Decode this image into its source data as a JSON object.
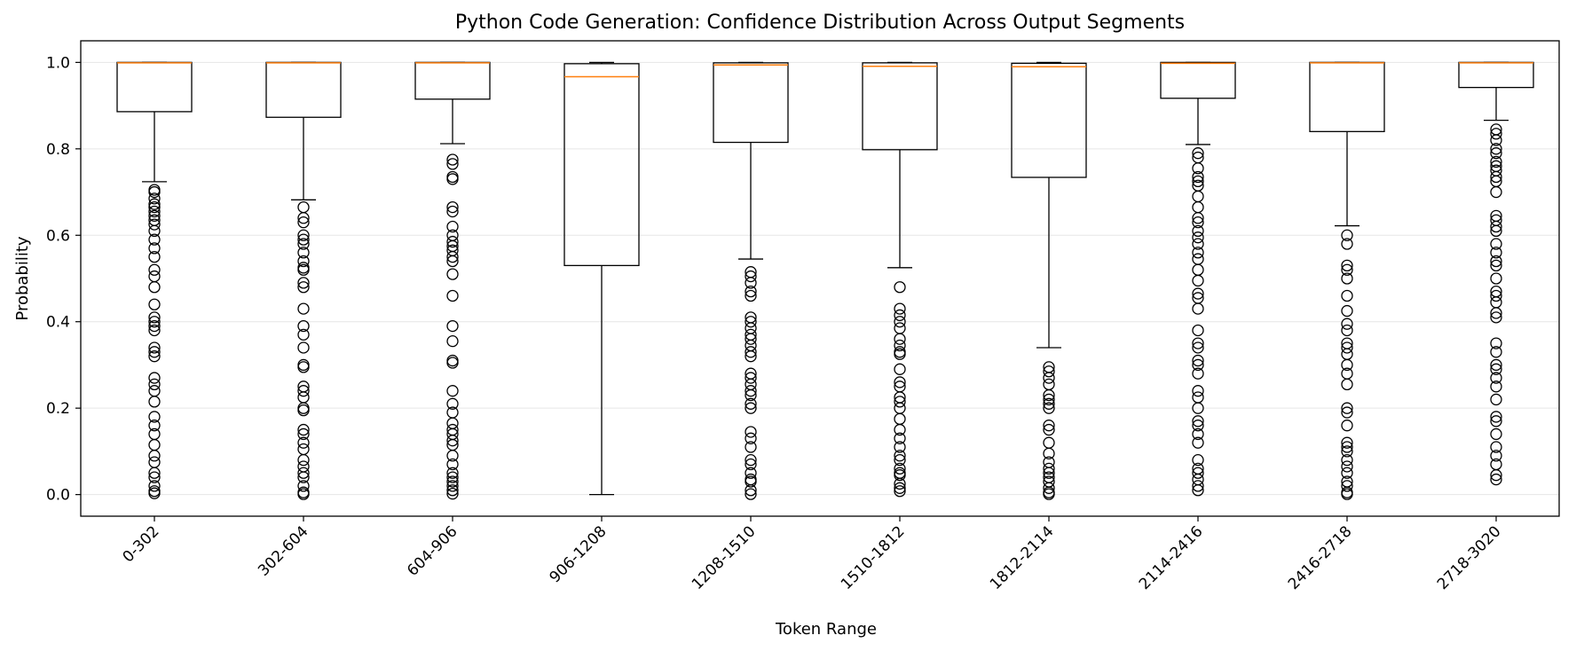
{
  "chart_data": {
    "type": "boxplot",
    "title": "Python Code Generation: Confidence Distribution Across Output Segments",
    "xlabel": "Token Range",
    "ylabel": "Probability",
    "ylim": [
      -0.05,
      1.05
    ],
    "yticks": [
      0.0,
      0.2,
      0.4,
      0.6,
      0.8,
      1.0
    ],
    "grid": "horizontal",
    "colors": {
      "box": "#000000",
      "median": "#ff7f0e",
      "grid": "#e6e6e6"
    },
    "categories": [
      "0-302",
      "302-604",
      "604-906",
      "906-1208",
      "1208-1510",
      "1510-1812",
      "1812-2114",
      "2114-2416",
      "2416-2718",
      "2718-3020"
    ],
    "boxes": [
      {
        "q1": 0.886,
        "median": 0.999,
        "q3": 1.0,
        "whisker_low": 0.724,
        "whisker_high": 1.0,
        "outliers": [
          0.705,
          0.7,
          0.685,
          0.672,
          0.665,
          0.655,
          0.645,
          0.635,
          0.625,
          0.61,
          0.59,
          0.57,
          0.55,
          0.52,
          0.505,
          0.48,
          0.44,
          0.41,
          0.4,
          0.39,
          0.38,
          0.34,
          0.33,
          0.32,
          0.27,
          0.255,
          0.24,
          0.215,
          0.18,
          0.16,
          0.14,
          0.115,
          0.09,
          0.075,
          0.05,
          0.04,
          0.02,
          0.008,
          0.003
        ]
      },
      {
        "q1": 0.873,
        "median": 0.999,
        "q3": 1.0,
        "whisker_low": 0.682,
        "whisker_high": 1.0,
        "outliers": [
          0.665,
          0.64,
          0.63,
          0.6,
          0.59,
          0.58,
          0.56,
          0.54,
          0.525,
          0.52,
          0.49,
          0.48,
          0.43,
          0.39,
          0.37,
          0.34,
          0.3,
          0.295,
          0.25,
          0.24,
          0.225,
          0.2,
          0.195,
          0.15,
          0.14,
          0.12,
          0.105,
          0.08,
          0.065,
          0.05,
          0.04,
          0.02,
          0.005,
          0.001
        ]
      },
      {
        "q1": 0.915,
        "median": 0.999,
        "q3": 1.0,
        "whisker_low": 0.812,
        "whisker_high": 1.0,
        "outliers": [
          0.775,
          0.765,
          0.735,
          0.73,
          0.665,
          0.655,
          0.62,
          0.6,
          0.585,
          0.575,
          0.565,
          0.55,
          0.54,
          0.51,
          0.46,
          0.39,
          0.355,
          0.31,
          0.305,
          0.24,
          0.21,
          0.19,
          0.165,
          0.15,
          0.14,
          0.125,
          0.115,
          0.09,
          0.07,
          0.05,
          0.04,
          0.03,
          0.02,
          0.01,
          0.002
        ]
      },
      {
        "q1": 0.53,
        "median": 0.967,
        "q3": 0.997,
        "whisker_low": 0.0,
        "whisker_high": 1.0,
        "outliers": []
      },
      {
        "q1": 0.815,
        "median": 0.994,
        "q3": 0.999,
        "whisker_low": 0.545,
        "whisker_high": 1.0,
        "outliers": [
          0.515,
          0.505,
          0.49,
          0.47,
          0.46,
          0.41,
          0.4,
          0.385,
          0.37,
          0.36,
          0.345,
          0.33,
          0.32,
          0.28,
          0.27,
          0.255,
          0.24,
          0.23,
          0.21,
          0.2,
          0.145,
          0.13,
          0.11,
          0.08,
          0.07,
          0.05,
          0.035,
          0.03,
          0.01,
          0.001
        ]
      },
      {
        "q1": 0.798,
        "median": 0.991,
        "q3": 0.999,
        "whisker_low": 0.525,
        "whisker_high": 1.0,
        "outliers": [
          0.48,
          0.43,
          0.415,
          0.4,
          0.385,
          0.36,
          0.345,
          0.33,
          0.325,
          0.29,
          0.26,
          0.25,
          0.225,
          0.215,
          0.2,
          0.175,
          0.15,
          0.13,
          0.11,
          0.09,
          0.08,
          0.06,
          0.05,
          0.045,
          0.025,
          0.015,
          0.008
        ]
      },
      {
        "q1": 0.734,
        "median": 0.99,
        "q3": 0.998,
        "whisker_low": 0.34,
        "whisker_high": 1.0,
        "outliers": [
          0.295,
          0.285,
          0.27,
          0.255,
          0.23,
          0.22,
          0.21,
          0.2,
          0.16,
          0.15,
          0.12,
          0.095,
          0.075,
          0.06,
          0.05,
          0.04,
          0.03,
          0.015,
          0.005,
          0.001
        ]
      },
      {
        "q1": 0.917,
        "median": 0.998,
        "q3": 1.0,
        "whisker_low": 0.81,
        "whisker_high": 1.0,
        "outliers": [
          0.79,
          0.78,
          0.755,
          0.735,
          0.725,
          0.715,
          0.69,
          0.665,
          0.64,
          0.63,
          0.61,
          0.595,
          0.58,
          0.56,
          0.545,
          0.52,
          0.495,
          0.465,
          0.455,
          0.43,
          0.38,
          0.35,
          0.34,
          0.31,
          0.3,
          0.28,
          0.24,
          0.225,
          0.2,
          0.17,
          0.16,
          0.14,
          0.12,
          0.08,
          0.06,
          0.05,
          0.035,
          0.02,
          0.01
        ]
      },
      {
        "q1": 0.84,
        "median": 0.999,
        "q3": 1.0,
        "whisker_low": 0.622,
        "whisker_high": 1.0,
        "outliers": [
          0.6,
          0.58,
          0.53,
          0.52,
          0.5,
          0.46,
          0.425,
          0.395,
          0.38,
          0.35,
          0.34,
          0.325,
          0.3,
          0.28,
          0.255,
          0.2,
          0.19,
          0.16,
          0.12,
          0.11,
          0.1,
          0.08,
          0.065,
          0.05,
          0.03,
          0.02,
          0.005,
          0.001
        ]
      },
      {
        "q1": 0.942,
        "median": 0.999,
        "q3": 1.0,
        "whisker_low": 0.866,
        "whisker_high": 1.0,
        "outliers": [
          0.845,
          0.835,
          0.82,
          0.8,
          0.79,
          0.77,
          0.76,
          0.75,
          0.735,
          0.725,
          0.7,
          0.645,
          0.635,
          0.62,
          0.61,
          0.58,
          0.56,
          0.54,
          0.53,
          0.5,
          0.47,
          0.46,
          0.445,
          0.42,
          0.41,
          0.35,
          0.33,
          0.3,
          0.29,
          0.27,
          0.25,
          0.22,
          0.18,
          0.17,
          0.14,
          0.11,
          0.09,
          0.07,
          0.045,
          0.035
        ]
      }
    ]
  }
}
